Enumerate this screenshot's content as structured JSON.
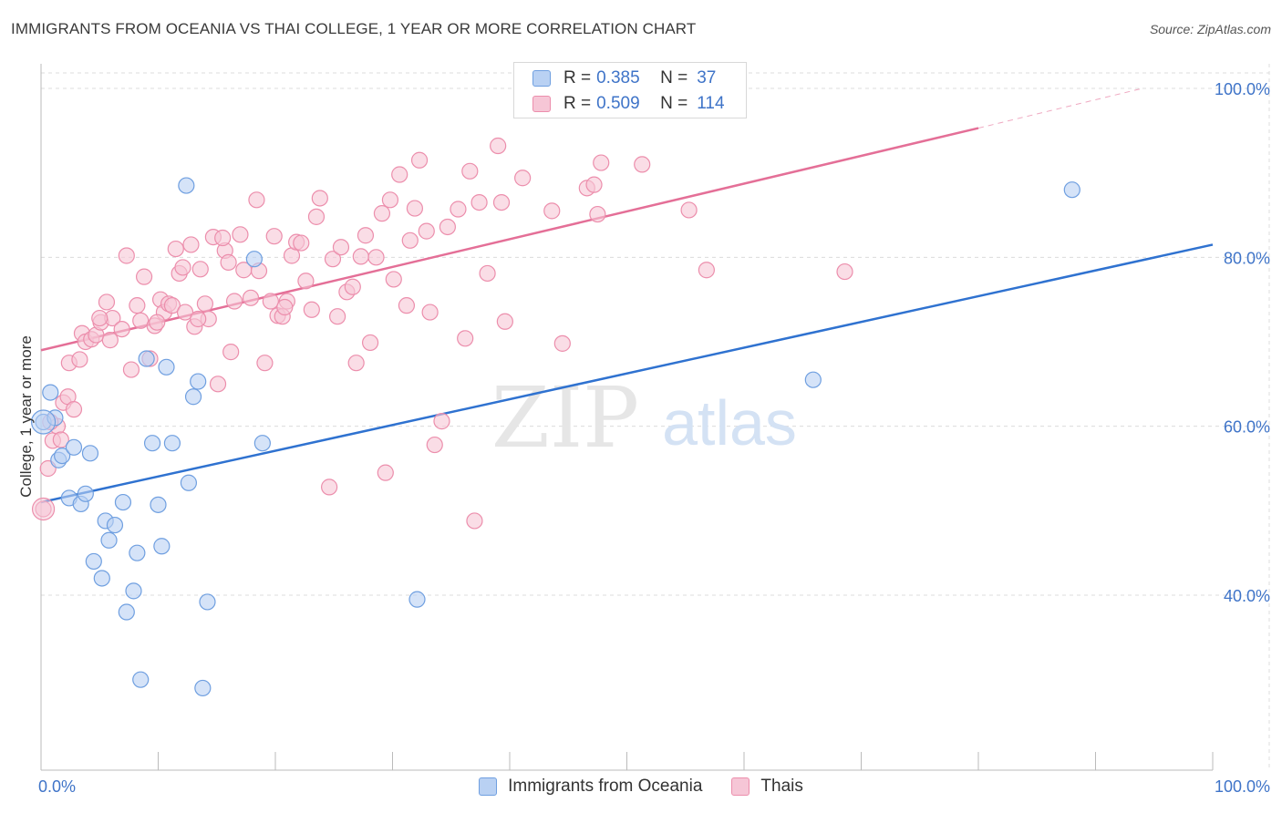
{
  "title": "IMMIGRANTS FROM OCEANIA VS THAI COLLEGE, 1 YEAR OR MORE CORRELATION CHART",
  "source": "Source: ZipAtlas.com",
  "watermark": {
    "zip": "ZIP",
    "atlas": "atlas"
  },
  "colors": {
    "blue": "#6f9fe0",
    "blue_fill": "#b9d1f3",
    "blue_line": "#2f72d0",
    "pink": "#ec8eac",
    "pink_fill": "#f6c6d6",
    "pink_line": "#e46f97",
    "axis_text": "#3f74c8"
  },
  "legend": {
    "top": [
      {
        "r_label": "R =",
        "r_value": "0.385",
        "n_label": "N =",
        "n_value": "37"
      },
      {
        "r_label": "R =",
        "r_value": "0.509",
        "n_label": "N =",
        "n_value": "114"
      }
    ],
    "bottom": [
      "Immigrants from Oceania",
      "Thais"
    ]
  },
  "chart_data": {
    "type": "scatter",
    "title": "IMMIGRANTS FROM OCEANIA VS THAI COLLEGE, 1 YEAR OR MORE CORRELATION CHART",
    "xlabel": "",
    "ylabel": "College, 1 year or more",
    "xlim": [
      0,
      100
    ],
    "ylim": [
      20,
      102
    ],
    "x_tick_labels": [
      "0.0%",
      "100.0%"
    ],
    "y_ticks": [
      40,
      60,
      80,
      100
    ],
    "y_tick_labels": [
      "40.0%",
      "60.0%",
      "80.0%",
      "100.0%"
    ],
    "series": [
      {
        "name": "Immigrants from Oceania",
        "r": 0.385,
        "n": 37,
        "trend": {
          "x0": 0,
          "y0": 51.0,
          "x1": 100,
          "y1": 81.5
        },
        "points": [
          [
            0.2,
            60.5
          ],
          [
            0.8,
            64
          ],
          [
            1.2,
            61
          ],
          [
            1.5,
            56
          ],
          [
            1.8,
            56.5
          ],
          [
            2.4,
            51.5
          ],
          [
            2.8,
            57.5
          ],
          [
            3.4,
            50.8
          ],
          [
            3.8,
            52
          ],
          [
            4.2,
            56.8
          ],
          [
            4.5,
            44
          ],
          [
            5.2,
            42
          ],
          [
            5.5,
            48.8
          ],
          [
            5.8,
            46.5
          ],
          [
            6.3,
            48.3
          ],
          [
            7,
            51
          ],
          [
            7.3,
            38
          ],
          [
            7.9,
            40.5
          ],
          [
            8.2,
            45
          ],
          [
            8.5,
            30
          ],
          [
            9,
            68
          ],
          [
            9.5,
            58
          ],
          [
            10,
            50.7
          ],
          [
            10.3,
            45.8
          ],
          [
            10.7,
            67
          ],
          [
            11.2,
            58
          ],
          [
            12.4,
            88.5
          ],
          [
            12.6,
            53.3
          ],
          [
            13,
            63.5
          ],
          [
            13.4,
            65.3
          ],
          [
            14.2,
            39.2
          ],
          [
            13.8,
            29
          ],
          [
            18.2,
            79.8
          ],
          [
            18.9,
            58
          ],
          [
            32.1,
            39.5
          ],
          [
            65.9,
            65.5
          ],
          [
            88,
            88
          ]
        ]
      },
      {
        "name": "Thais",
        "r": 0.509,
        "n": 114,
        "trend": {
          "x0": 0,
          "y0": 69.0,
          "x1": 80,
          "y1": 95.3
        },
        "trend_dash": {
          "x0": 80,
          "y0": 95.3,
          "x1": 94,
          "y1": 100.0
        },
        "points": [
          [
            0.2,
            50.2
          ],
          [
            0.6,
            55
          ],
          [
            1,
            58.3
          ],
          [
            1.4,
            60
          ],
          [
            1.9,
            62.8
          ],
          [
            2.3,
            63.5
          ],
          [
            2.8,
            62
          ],
          [
            2.4,
            67.5
          ],
          [
            3.3,
            67.9
          ],
          [
            3.5,
            71
          ],
          [
            3.8,
            70
          ],
          [
            4.3,
            70.3
          ],
          [
            4.7,
            70.8
          ],
          [
            5.1,
            72.3
          ],
          [
            5.6,
            74.7
          ],
          [
            5.9,
            70.2
          ],
          [
            6.1,
            72.8
          ],
          [
            6.9,
            71.5
          ],
          [
            7.3,
            80.2
          ],
          [
            7.7,
            66.7
          ],
          [
            8.2,
            74.3
          ],
          [
            8.5,
            72.5
          ],
          [
            8.8,
            77.7
          ],
          [
            9.3,
            68
          ],
          [
            9.7,
            71.9
          ],
          [
            10.2,
            75
          ],
          [
            10.5,
            73.5
          ],
          [
            10.9,
            74.5
          ],
          [
            11.2,
            74.3
          ],
          [
            11.5,
            81
          ],
          [
            11.8,
            78.1
          ],
          [
            12.1,
            78.8
          ],
          [
            12.3,
            73.5
          ],
          [
            12.8,
            81.5
          ],
          [
            13.1,
            71.8
          ],
          [
            13.6,
            78.6
          ],
          [
            14,
            74.5
          ],
          [
            14.3,
            72.7
          ],
          [
            14.7,
            82.4
          ],
          [
            15.1,
            65
          ],
          [
            15.7,
            80.8
          ],
          [
            16,
            79.4
          ],
          [
            16.2,
            68.8
          ],
          [
            16.5,
            74.8
          ],
          [
            17,
            82.7
          ],
          [
            17.3,
            78.5
          ],
          [
            17.9,
            75.2
          ],
          [
            18.4,
            86.8
          ],
          [
            18.6,
            78.4
          ],
          [
            19.1,
            67.5
          ],
          [
            19.6,
            74.8
          ],
          [
            19.9,
            82.5
          ],
          [
            20.2,
            73.1
          ],
          [
            20.6,
            73
          ],
          [
            21,
            74.8
          ],
          [
            21.4,
            80.2
          ],
          [
            21.8,
            81.8
          ],
          [
            22.2,
            81.7
          ],
          [
            22.6,
            77.2
          ],
          [
            23.1,
            73.8
          ],
          [
            23.5,
            84.8
          ],
          [
            23.8,
            87
          ],
          [
            24.6,
            52.8
          ],
          [
            24.9,
            79.8
          ],
          [
            25.3,
            73
          ],
          [
            25.6,
            81.2
          ],
          [
            26.1,
            75.9
          ],
          [
            26.6,
            76.5
          ],
          [
            26.9,
            67.5
          ],
          [
            27.3,
            80.1
          ],
          [
            27.7,
            82.6
          ],
          [
            28.1,
            69.9
          ],
          [
            28.6,
            80
          ],
          [
            29.1,
            85.2
          ],
          [
            29.4,
            54.5
          ],
          [
            29.8,
            86.8
          ],
          [
            30.1,
            77.4
          ],
          [
            30.6,
            89.8
          ],
          [
            31.2,
            74.3
          ],
          [
            31.5,
            82
          ],
          [
            31.9,
            85.8
          ],
          [
            32.3,
            91.5
          ],
          [
            32.9,
            83.1
          ],
          [
            33.2,
            73.5
          ],
          [
            33.6,
            57.8
          ],
          [
            34.2,
            60.6
          ],
          [
            34.7,
            83.6
          ],
          [
            35.6,
            85.7
          ],
          [
            36.2,
            70.4
          ],
          [
            36.6,
            90.2
          ],
          [
            37,
            48.8
          ],
          [
            37.4,
            86.5
          ],
          [
            38.1,
            78.1
          ],
          [
            39,
            93.2
          ],
          [
            39.3,
            86.5
          ],
          [
            41.1,
            89.4
          ],
          [
            43.6,
            85.5
          ],
          [
            44.5,
            69.8
          ],
          [
            46.6,
            88.2
          ],
          [
            47.2,
            88.6
          ],
          [
            47.5,
            85.1
          ],
          [
            47.8,
            91.2
          ],
          [
            51.3,
            91
          ],
          [
            55.3,
            85.6
          ],
          [
            56.8,
            78.5
          ],
          [
            68.6,
            78.3
          ],
          [
            0.8,
            60.5
          ],
          [
            1.7,
            58.4
          ],
          [
            5,
            72.8
          ],
          [
            9.9,
            72.3
          ],
          [
            13.4,
            72.7
          ],
          [
            15.5,
            82.3
          ],
          [
            20.8,
            74.1
          ],
          [
            39.6,
            72.4
          ]
        ]
      }
    ],
    "grid": true,
    "legend_position": "top-center"
  }
}
